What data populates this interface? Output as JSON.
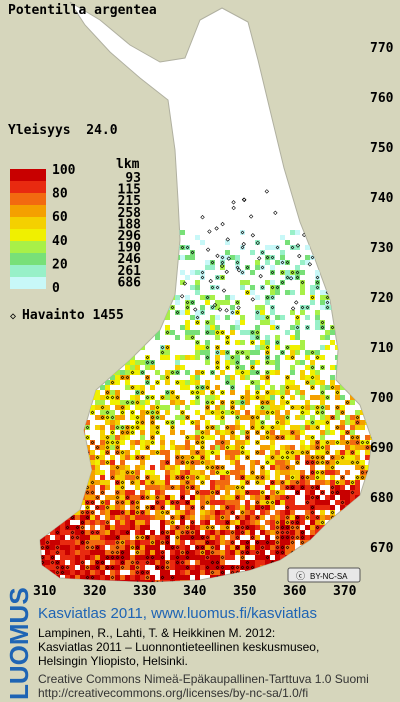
{
  "title": "Potentilla argentea",
  "frequency": "Yleisyys  24.0",
  "legend": {
    "scale_labels": [
      100,
      80,
      60,
      40,
      20,
      0
    ],
    "count_header": "lkm",
    "counts": [
      93,
      115,
      215,
      258,
      188,
      296,
      190,
      246,
      261,
      686
    ]
  },
  "observations": "Havainto 1455",
  "grid_labels": {
    "north": [
      770,
      760,
      750,
      740,
      730,
      720,
      710,
      700,
      690,
      680,
      670
    ],
    "east": [
      310,
      320,
      330,
      340,
      350,
      360,
      370
    ]
  },
  "badge": "BY-NC-SA",
  "footer": {
    "logo": "LUOMUS",
    "link": "Kasviatlas 2011, www.luomus.fi/kasviatlas",
    "citation": [
      "Lampinen, R., Lahti, T. & Heikkinen M. 2012:",
      "Kasviatlas 2011 – Luonnontieteellinen keskusmuseo,",
      "Helsingin Yliopisto, Helsinki."
    ],
    "license": [
      "Creative Commons Nimeä-Epäkaupallinen-Tarttuva 1.0 Suomi",
      "http://creativecommons.org/licenses/by-nc-sa/1.0/fi"
    ]
  }
}
